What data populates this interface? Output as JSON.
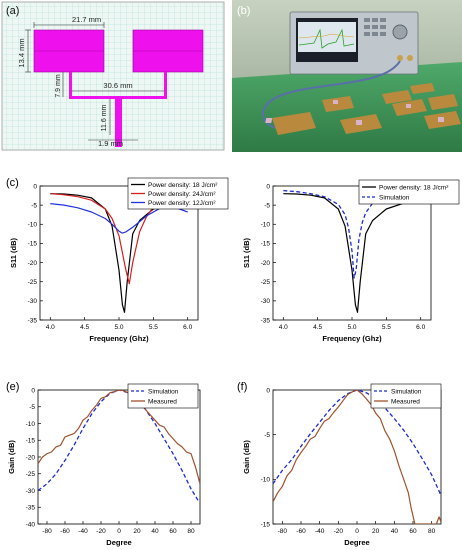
{
  "panels": {
    "a": {
      "label": "(a)",
      "dimensions": [
        "21.7 mm",
        "13.4 mm",
        "7.9 mm",
        "30.6 mm",
        "11.6 mm",
        "1.9 mm"
      ],
      "colors": {
        "patch": "#ee11ee",
        "grid": "#a8dcd0",
        "background": "#e9f5f1"
      }
    },
    "b": {
      "label": "(b)",
      "description_visual": true
    }
  },
  "chart_data": [
    {
      "id": "c",
      "panel_label": "(c)",
      "type": "line",
      "xlabel": "Frequency (Ghz)",
      "ylabel": "S11 (dB)",
      "xlim": [
        3.85,
        6.15
      ],
      "ylim": [
        -35,
        0
      ],
      "xticks": [
        "4.0",
        "4.5",
        "5.0",
        "5.5",
        "6.0"
      ],
      "yticks": [
        "0",
        "-5",
        "-10",
        "-15",
        "-20",
        "-25",
        "-30",
        "-35"
      ],
      "legend_position": "top-right",
      "series": [
        {
          "name": "Power density: 18 J/cm²",
          "color": "#000000",
          "x": [
            4.0,
            4.2,
            4.4,
            4.6,
            4.8,
            4.9,
            5.0,
            5.05,
            5.08,
            5.12,
            5.2,
            5.3,
            5.5,
            5.8,
            6.0
          ],
          "y": [
            -2.0,
            -2.1,
            -2.4,
            -3.1,
            -6.0,
            -10.5,
            -22.0,
            -31.0,
            -33.0,
            -25.0,
            -12.5,
            -9.0,
            -6.0,
            -4.2,
            -3.8
          ]
        },
        {
          "name": "Power density: 24J/cm²",
          "color": "#d62020",
          "x": [
            4.0,
            4.2,
            4.4,
            4.6,
            4.8,
            4.9,
            5.0,
            5.1,
            5.15,
            5.2,
            5.3,
            5.4,
            5.5,
            5.7,
            5.9,
            6.0
          ],
          "y": [
            -2.0,
            -2.3,
            -2.8,
            -3.7,
            -6.0,
            -8.5,
            -13.0,
            -22.0,
            -25.5,
            -20.0,
            -12.0,
            -8.0,
            -5.5,
            -3.8,
            -3.0,
            -2.7
          ]
        },
        {
          "name": "Power density: 12J/cm²",
          "color": "#2233dd",
          "x": [
            4.0,
            4.2,
            4.4,
            4.6,
            4.8,
            4.9,
            5.0,
            5.05,
            5.1,
            5.2,
            5.3,
            5.4,
            5.6,
            5.8,
            6.0
          ],
          "y": [
            -4.6,
            -5.0,
            -5.7,
            -6.8,
            -8.5,
            -10.0,
            -11.8,
            -12.3,
            -12.0,
            -10.8,
            -9.3,
            -7.8,
            -5.8,
            -5.5,
            -6.8
          ]
        }
      ]
    },
    {
      "id": "d",
      "panel_label": "(d)",
      "type": "line",
      "xlabel": "Frequency (Ghz)",
      "ylabel": "S11 (dB)",
      "xlim": [
        3.85,
        6.15
      ],
      "ylim": [
        -35,
        0
      ],
      "xticks": [
        "4.0",
        "4.5",
        "5.0",
        "5.5",
        "6.0"
      ],
      "yticks": [
        "0",
        "-5",
        "-10",
        "-15",
        "-20",
        "-25",
        "-30",
        "-35"
      ],
      "legend_position": "top-right",
      "series": [
        {
          "name": "Power density: 18 J/cm²",
          "color": "#000000",
          "dash": false,
          "x": [
            4.0,
            4.2,
            4.4,
            4.6,
            4.8,
            4.9,
            5.0,
            5.05,
            5.08,
            5.12,
            5.2,
            5.3,
            5.5,
            5.8,
            6.0
          ],
          "y": [
            -2.0,
            -2.1,
            -2.4,
            -3.1,
            -6.0,
            -10.5,
            -22.0,
            -31.0,
            -33.0,
            -25.0,
            -12.5,
            -9.0,
            -6.0,
            -4.2,
            -3.8
          ]
        },
        {
          "name": "Simulation",
          "color": "#1a2bd6",
          "dash": true,
          "x": [
            4.0,
            4.2,
            4.4,
            4.6,
            4.8,
            4.9,
            4.95,
            5.0,
            5.03,
            5.06,
            5.1,
            5.15,
            5.2,
            5.3,
            5.5,
            5.8,
            6.0
          ],
          "y": [
            -1.2,
            -1.5,
            -2.0,
            -2.8,
            -4.8,
            -7.5,
            -11.0,
            -17.0,
            -24.0,
            -22.0,
            -14.0,
            -9.5,
            -7.0,
            -4.5,
            -2.8,
            -2.0,
            -1.7
          ]
        }
      ]
    },
    {
      "id": "e",
      "panel_label": "(e)",
      "type": "line",
      "xlabel": "Degree",
      "ylabel": "Gain (dB)",
      "xlim": [
        -90,
        90
      ],
      "ylim": [
        -40,
        0
      ],
      "xticks": [
        "-80",
        "-60",
        "-40",
        "-20",
        "0",
        "20",
        "40",
        "60",
        "80"
      ],
      "yticks": [
        "0",
        "-5",
        "-10",
        "-15",
        "-20",
        "-25",
        "-30",
        "-35",
        "-40"
      ],
      "legend_position": "top-right",
      "series": [
        {
          "name": "Simulation",
          "color": "#1a2bd6",
          "dash": true,
          "x": [
            -90,
            -80,
            -70,
            -60,
            -50,
            -40,
            -30,
            -20,
            -10,
            0,
            10,
            20,
            30,
            40,
            50,
            60,
            70,
            80,
            88
          ],
          "y": [
            -30.0,
            -28.0,
            -25.0,
            -21.0,
            -16.5,
            -11.5,
            -7.0,
            -3.5,
            -1.0,
            0.0,
            -0.8,
            -2.8,
            -6.0,
            -10.0,
            -14.5,
            -19.0,
            -24.0,
            -29.5,
            -33.0
          ]
        },
        {
          "name": "Measured",
          "color": "#a0522d",
          "dash": false,
          "x": [
            -90,
            -85,
            -80,
            -75,
            -70,
            -65,
            -60,
            -55,
            -50,
            -45,
            -40,
            -35,
            -30,
            -25,
            -20,
            -15,
            -10,
            -5,
            0,
            5,
            10,
            15,
            20,
            25,
            30,
            35,
            40,
            45,
            50,
            55,
            60,
            65,
            70,
            75,
            80,
            85,
            90
          ],
          "y": [
            -22.0,
            -20.0,
            -19.0,
            -18.5,
            -17.0,
            -16.5,
            -14.0,
            -13.5,
            -13.0,
            -11.5,
            -9.0,
            -8.0,
            -6.0,
            -4.5,
            -2.5,
            -2.0,
            -0.8,
            -0.5,
            0.0,
            -0.2,
            -0.8,
            -1.5,
            -3.0,
            -3.8,
            -6.0,
            -7.5,
            -9.0,
            -10.5,
            -11.0,
            -13.0,
            -14.5,
            -16.0,
            -17.0,
            -18.5,
            -19.0,
            -23.0,
            -28.0
          ]
        }
      ]
    },
    {
      "id": "f",
      "panel_label": "(f)",
      "type": "line",
      "xlabel": "Degree",
      "ylabel": "Gain (dB)",
      "xlim": [
        -90,
        90
      ],
      "ylim": [
        -15,
        0
      ],
      "xticks": [
        "-80",
        "-60",
        "-40",
        "-20",
        "0",
        "20",
        "40",
        "60",
        "80"
      ],
      "yticks": [
        "0",
        "-5",
        "-10",
        "-15"
      ],
      "legend_position": "top-right",
      "series": [
        {
          "name": "Simulation",
          "color": "#1a2bd6",
          "dash": true,
          "x": [
            -90,
            -80,
            -70,
            -60,
            -50,
            -40,
            -30,
            -20,
            -10,
            0,
            10,
            20,
            30,
            40,
            50,
            60,
            70,
            80,
            90
          ],
          "y": [
            -10.5,
            -9.0,
            -7.8,
            -6.3,
            -4.9,
            -3.6,
            -2.3,
            -1.2,
            -0.4,
            0.0,
            -0.3,
            -1.0,
            -2.0,
            -3.2,
            -4.5,
            -6.0,
            -7.7,
            -9.5,
            -11.8
          ]
        },
        {
          "name": "Measured",
          "color": "#a0522d",
          "dash": false,
          "x": [
            -90,
            -85,
            -80,
            -75,
            -70,
            -65,
            -60,
            -55,
            -50,
            -45,
            -40,
            -35,
            -30,
            -25,
            -20,
            -15,
            -10,
            -5,
            0,
            5,
            10,
            15,
            20,
            25,
            30,
            35,
            40,
            45,
            50,
            55,
            58,
            62,
            70,
            80,
            85,
            88,
            90
          ],
          "y": [
            -12.5,
            -11.5,
            -10.8,
            -9.6,
            -9.0,
            -7.8,
            -7.0,
            -6.3,
            -5.5,
            -5.2,
            -4.3,
            -3.5,
            -3.2,
            -2.5,
            -1.9,
            -1.2,
            -0.5,
            -0.2,
            0.0,
            -0.4,
            -1.0,
            -1.6,
            -2.6,
            -3.2,
            -4.6,
            -5.5,
            -6.8,
            -8.5,
            -10.0,
            -11.5,
            -13.2,
            -15.0,
            -15.0,
            -15.0,
            -15.0,
            -14.2,
            -14.8
          ]
        }
      ]
    }
  ]
}
